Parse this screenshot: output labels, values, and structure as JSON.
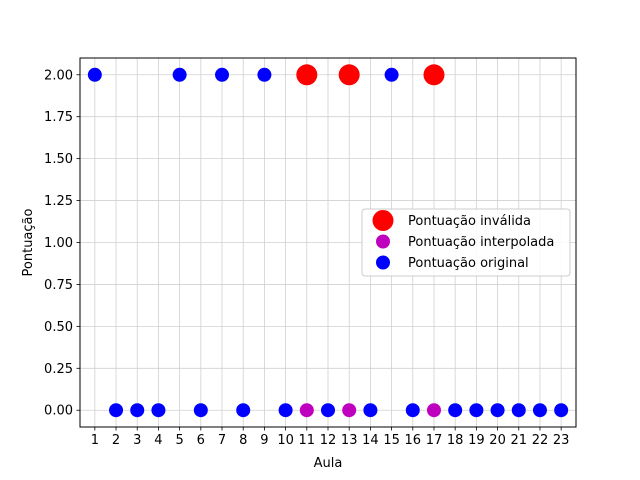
{
  "chart_data": {
    "type": "scatter",
    "xlabel": "Aula",
    "ylabel": "Pontuação",
    "x_ticks": [
      1,
      2,
      3,
      4,
      5,
      6,
      7,
      8,
      9,
      10,
      11,
      12,
      13,
      14,
      15,
      16,
      17,
      18,
      19,
      20,
      21,
      22,
      23
    ],
    "y_ticks": [
      "0.00",
      "0.25",
      "0.50",
      "0.75",
      "1.00",
      "1.25",
      "1.50",
      "1.75",
      "2.00"
    ],
    "xlim": [
      0.3,
      23.7
    ],
    "ylim": [
      -0.1,
      2.1
    ],
    "grid": true,
    "legend_position": "center-right",
    "series": [
      {
        "name": "Pontuação inválida",
        "color": "#ff0000",
        "marker": "large-circle",
        "points": [
          [
            11,
            2
          ],
          [
            13,
            2
          ],
          [
            17,
            2
          ]
        ]
      },
      {
        "name": "Pontuação interpolada",
        "color": "#bf00bf",
        "marker": "circle",
        "points": [
          [
            11,
            0
          ],
          [
            13,
            0
          ],
          [
            17,
            0
          ]
        ]
      },
      {
        "name": "Pontuação original",
        "color": "#0000ff",
        "marker": "circle",
        "points": [
          [
            1,
            2
          ],
          [
            2,
            0
          ],
          [
            3,
            0
          ],
          [
            4,
            0
          ],
          [
            5,
            2
          ],
          [
            6,
            0
          ],
          [
            7,
            2
          ],
          [
            8,
            0
          ],
          [
            9,
            2
          ],
          [
            10,
            0
          ],
          [
            12,
            0
          ],
          [
            14,
            0
          ],
          [
            15,
            2
          ],
          [
            16,
            0
          ],
          [
            18,
            0
          ],
          [
            19,
            0
          ],
          [
            20,
            0
          ],
          [
            21,
            0
          ],
          [
            22,
            0
          ],
          [
            23,
            0
          ]
        ]
      }
    ]
  }
}
